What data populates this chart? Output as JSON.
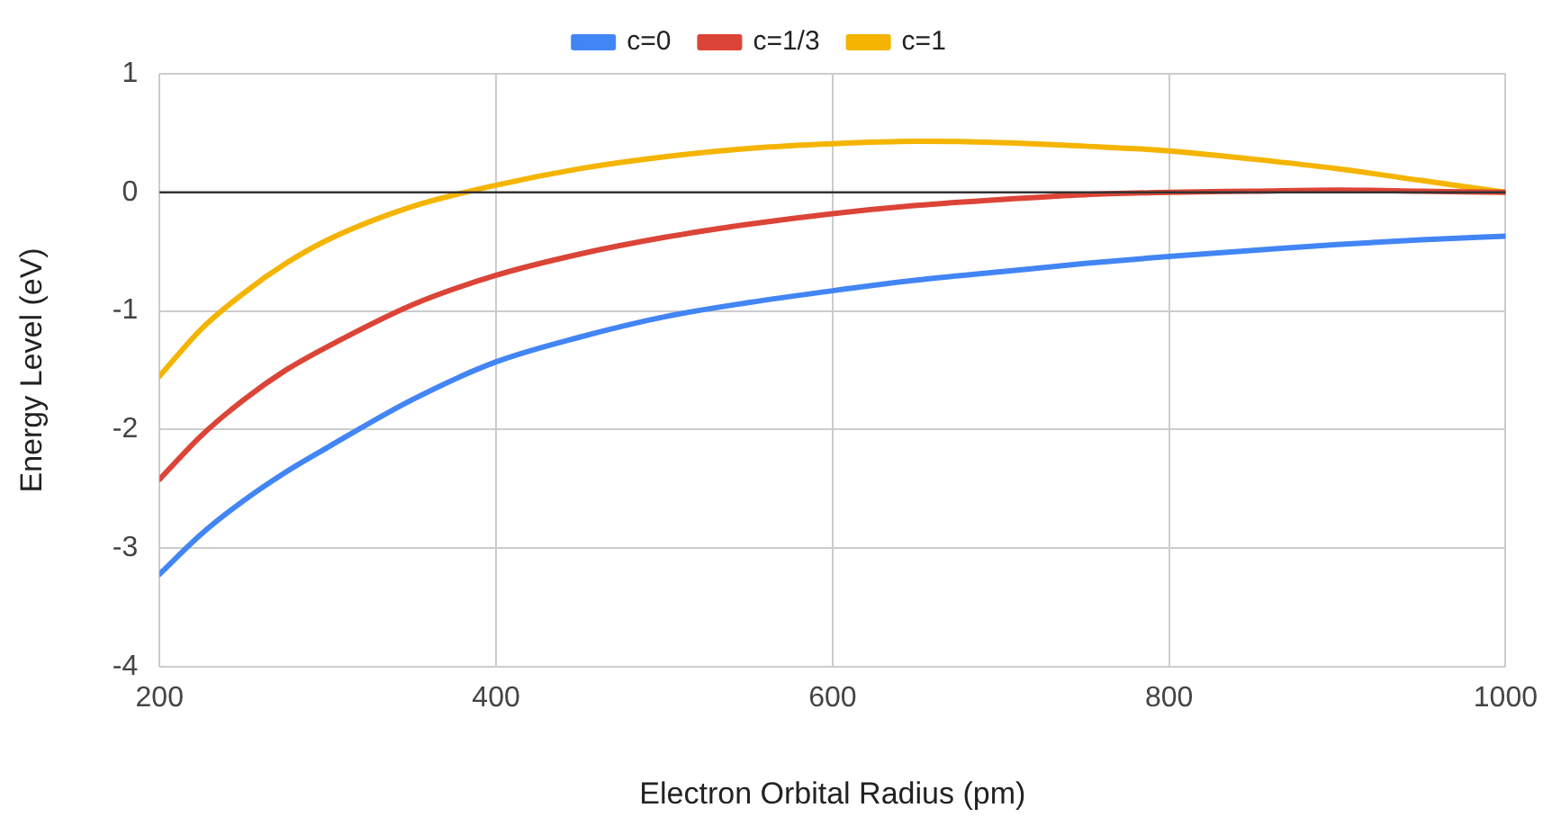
{
  "chart_data": {
    "type": "line",
    "xlabel": "Electron Orbital Radius (pm)",
    "ylabel": "Energy Level (eV)",
    "x": [
      200,
      225,
      250,
      275,
      300,
      350,
      400,
      450,
      500,
      550,
      600,
      650,
      700,
      750,
      800,
      850,
      900,
      950,
      1000
    ],
    "series": [
      {
        "name": "c=0",
        "color": "#4285f4",
        "values": [
          -3.22,
          -2.88,
          -2.6,
          -2.36,
          -2.15,
          -1.75,
          -1.43,
          -1.22,
          -1.05,
          -0.93,
          -0.83,
          -0.74,
          -0.67,
          -0.6,
          -0.54,
          -0.49,
          -0.44,
          -0.4,
          -0.37
        ]
      },
      {
        "name": "c=1/3",
        "color": "#db4437",
        "values": [
          -2.42,
          -2.05,
          -1.75,
          -1.5,
          -1.3,
          -0.95,
          -0.7,
          -0.52,
          -0.38,
          -0.27,
          -0.18,
          -0.11,
          -0.06,
          -0.02,
          0,
          0.01,
          0.02,
          0.01,
          0
        ]
      },
      {
        "name": "c=1",
        "color": "#f4b400",
        "values": [
          -1.55,
          -1.15,
          -0.85,
          -0.6,
          -0.4,
          -0.12,
          0.06,
          0.2,
          0.3,
          0.37,
          0.41,
          0.43,
          0.42,
          0.39,
          0.35,
          0.28,
          0.2,
          0.1,
          0
        ]
      }
    ],
    "xlim": [
      200,
      1000
    ],
    "xticks": [
      200,
      400,
      600,
      800,
      1000
    ],
    "ylim": [
      -4,
      1
    ],
    "yticks": [
      -4,
      -3,
      -2,
      -1,
      0,
      1
    ],
    "ref_lines": [
      {
        "axis": "y",
        "value": 0,
        "color": "#333333"
      }
    ],
    "grid": true,
    "legend": "top",
    "marker": "none",
    "line_style": "solid"
  }
}
